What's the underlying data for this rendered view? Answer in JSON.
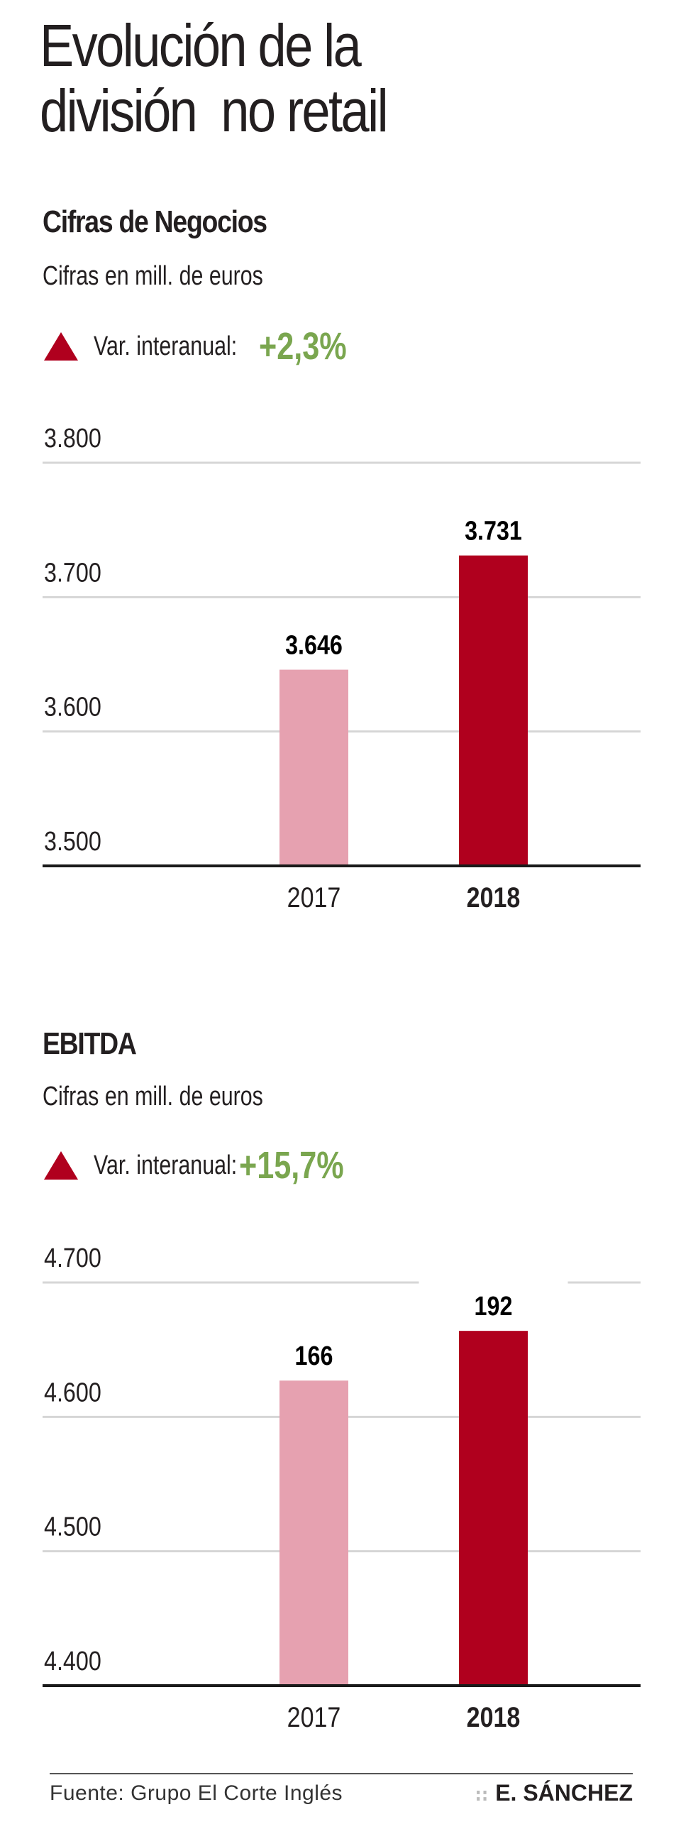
{
  "title": "Evolución de la\ndivisión  no retail",
  "colors": {
    "bar_prev": "#e6a1b0",
    "bar_curr": "#b0001e",
    "positive": "#7aa64f",
    "triangle": "#b0001e",
    "grid": "#d6d6d6",
    "axis": "#1a1a1a"
  },
  "sections": [
    {
      "heading": "Cifras de Negocios",
      "subtitle": "Cifras en mill. de euros",
      "variation_label": "Var. interanual:",
      "variation_value": "+2,3%",
      "variation_icon": "triangle-up-icon"
    },
    {
      "heading": "EBITDA",
      "subtitle": "Cifras en mill. de euros",
      "variation_label": "Var. interanual:",
      "variation_value": "+15,7%",
      "variation_icon": "triangle-up-icon"
    }
  ],
  "chart_data": [
    {
      "type": "bar",
      "title": "Cifras de Negocios",
      "categories": [
        "2017",
        "2018"
      ],
      "values": [
        3646,
        3731
      ],
      "value_labels": [
        "3.646",
        "3.731"
      ],
      "ylim": [
        3500,
        3800
      ],
      "yticks": [
        3500,
        3600,
        3700,
        3800
      ],
      "ytick_labels": [
        "3.500",
        "3.600",
        "3.700",
        "3.800"
      ],
      "xlabel": "",
      "ylabel": "Cifras en mill. de euros",
      "grid": true
    },
    {
      "type": "bar",
      "title": "EBITDA",
      "categories": [
        "2017",
        "2018"
      ],
      "values": [
        166,
        192
      ],
      "value_labels": [
        "166",
        "192"
      ],
      "note": "Bars drawn on the printed 4.400–4.700 scale; bar heights correspond approx. to 4.627 and 4.664 on that scale",
      "bar_scale_values": [
        4627,
        4664
      ],
      "ylim": [
        4400,
        4700
      ],
      "yticks": [
        4400,
        4500,
        4600,
        4700
      ],
      "ytick_labels": [
        "4.400",
        "4.500",
        "4.600",
        "4.700"
      ],
      "xlabel": "",
      "ylabel": "Cifras en mill. de euros",
      "grid": true
    }
  ],
  "footer": {
    "source": "Fuente: Grupo El Corte Inglés",
    "separator": "::",
    "author": "E. SÁNCHEZ"
  }
}
